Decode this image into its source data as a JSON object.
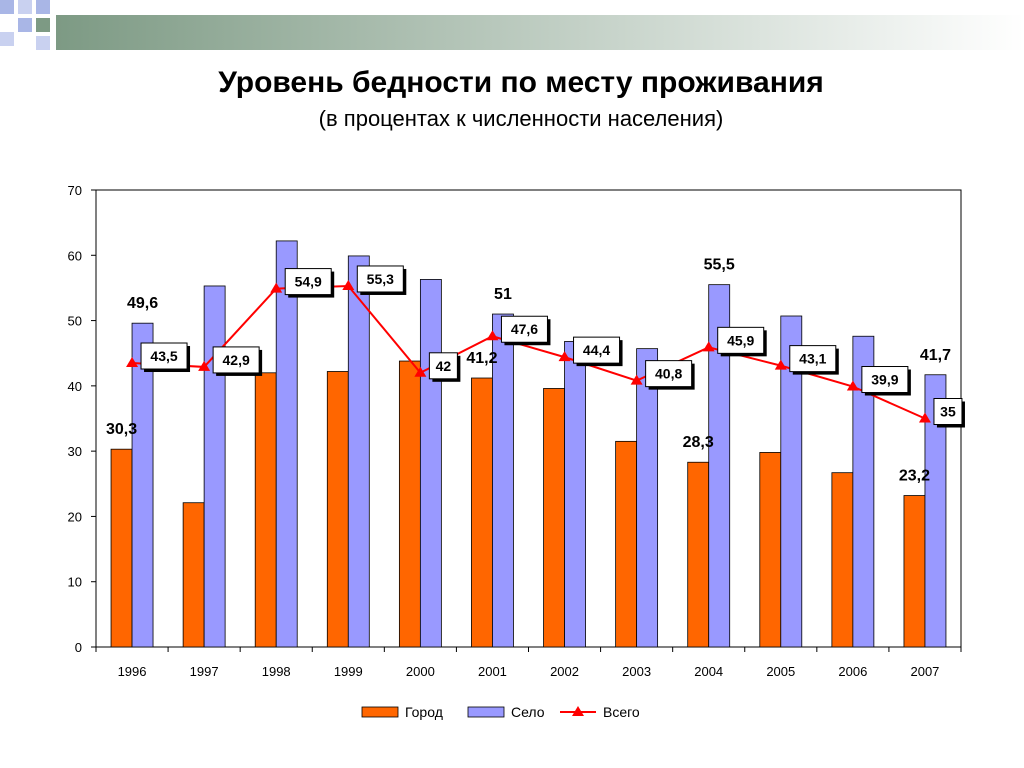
{
  "slide": {
    "title": "Уровень бедности по месту проживания",
    "subtitle": "(в процентах к численности населения)"
  },
  "chart_data": {
    "type": "bar",
    "categories": [
      "1996",
      "1997",
      "1998",
      "1999",
      "2000",
      "2001",
      "2002",
      "2003",
      "2004",
      "2005",
      "2006",
      "2007"
    ],
    "series": [
      {
        "name": "Город",
        "type": "bar",
        "color": "#FF6600",
        "values": [
          30.3,
          22.1,
          42.0,
          42.2,
          43.8,
          41.2,
          39.6,
          31.5,
          28.3,
          29.8,
          26.7,
          23.2
        ]
      },
      {
        "name": "Село",
        "type": "bar",
        "color": "#9999FF",
        "values": [
          49.6,
          55.3,
          62.2,
          59.9,
          56.3,
          51.0,
          46.8,
          45.7,
          55.5,
          50.7,
          47.6,
          41.7
        ]
      },
      {
        "name": "Всего",
        "type": "line",
        "color": "#FF0000",
        "values": [
          43.5,
          42.9,
          54.9,
          55.3,
          42.0,
          47.6,
          44.4,
          40.8,
          45.9,
          43.1,
          39.9,
          35.0
        ]
      }
    ],
    "ylim": [
      0,
      70
    ],
    "yticks": [
      0,
      10,
      20,
      30,
      40,
      50,
      60,
      70
    ],
    "grid": false,
    "legend": "bottom",
    "data_labels": {
      "Город": [
        {
          "index": 0,
          "text": "30,3"
        },
        {
          "index": 5,
          "text": "41,2"
        },
        {
          "index": 8,
          "text": "28,3"
        },
        {
          "index": 11,
          "text": "23,2"
        }
      ],
      "Село": [
        {
          "index": 0,
          "text": "49,6"
        },
        {
          "index": 5,
          "text": "51"
        },
        {
          "index": 8,
          "text": "55,5"
        },
        {
          "index": 11,
          "text": "41,7"
        }
      ],
      "Всего": [
        "43,5",
        "42,9",
        "54,9",
        "55,3",
        "42",
        "47,6",
        "44,4",
        "40,8",
        "45,9",
        "43,1",
        "39,9",
        "35"
      ]
    }
  }
}
